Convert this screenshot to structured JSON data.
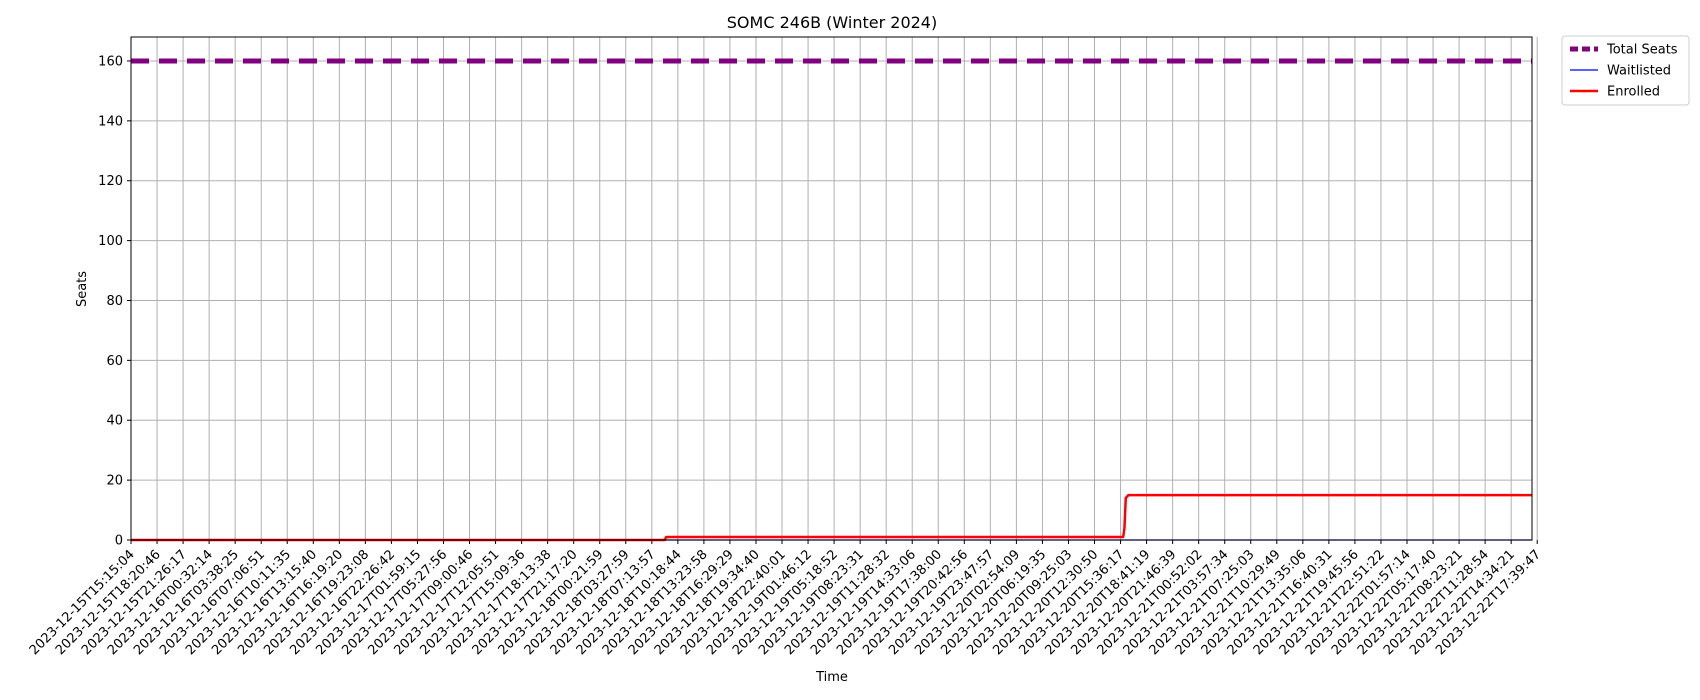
{
  "chart_data": {
    "type": "line",
    "title": "SOMC 246B (Winter 2024)",
    "xlabel": "Time",
    "ylabel": "Seats",
    "ylim": [
      0,
      168
    ],
    "yticks": [
      0,
      20,
      40,
      60,
      80,
      100,
      120,
      140,
      160
    ],
    "grid": true,
    "legend_position": "outside-top-right",
    "x_categories": [
      "2023-12-15T15:15:04",
      "2023-12-15T18:20:46",
      "2023-12-15T21:26:17",
      "2023-12-16T00:32:14",
      "2023-12-16T03:38:25",
      "2023-12-16T07:06:51",
      "2023-12-16T10:11:35",
      "2023-12-16T13:15:40",
      "2023-12-16T16:19:20",
      "2023-12-16T19:23:08",
      "2023-12-16T22:26:42",
      "2023-12-17T01:59:15",
      "2023-12-17T05:27:56",
      "2023-12-17T09:00:46",
      "2023-12-17T12:05:51",
      "2023-12-17T15:09:36",
      "2023-12-17T18:13:38",
      "2023-12-17T21:17:20",
      "2023-12-18T00:21:59",
      "2023-12-18T03:27:59",
      "2023-12-18T07:13:57",
      "2023-12-18T10:18:44",
      "2023-12-18T13:23:58",
      "2023-12-18T16:29:29",
      "2023-12-18T19:34:40",
      "2023-12-18T22:40:01",
      "2023-12-19T01:46:12",
      "2023-12-19T05:18:52",
      "2023-12-19T08:23:31",
      "2023-12-19T11:28:32",
      "2023-12-19T14:33:06",
      "2023-12-19T17:38:00",
      "2023-12-19T20:42:56",
      "2023-12-19T23:47:57",
      "2023-12-20T02:54:09",
      "2023-12-20T06:19:35",
      "2023-12-20T09:25:03",
      "2023-12-20T12:30:50",
      "2023-12-20T15:36:17",
      "2023-12-20T18:41:19",
      "2023-12-20T21:46:39",
      "2023-12-21T00:52:02",
      "2023-12-21T03:57:34",
      "2023-12-21T07:25:03",
      "2023-12-21T10:29:49",
      "2023-12-21T13:35:06",
      "2023-12-21T16:40:31",
      "2023-12-21T19:45:56",
      "2023-12-21T22:51:22",
      "2023-12-22T01:57:14",
      "2023-12-22T05:17:40",
      "2023-12-22T08:23:21",
      "2023-12-22T11:28:54",
      "2023-12-22T14:34:21",
      "2023-12-22T17:39:47"
    ],
    "x_range": [
      0,
      53.8
    ],
    "series": [
      {
        "name": "Total Seats",
        "color": "#800080",
        "style": "dashed",
        "points": [
          [
            0,
            160
          ],
          [
            53.8,
            160
          ]
        ]
      },
      {
        "name": "Waitlisted",
        "color": "#0000ff",
        "style": "solid",
        "points": [
          [
            0,
            0
          ],
          [
            53.8,
            0
          ]
        ]
      },
      {
        "name": "Enrolled",
        "color": "#ff0000",
        "style": "solid",
        "points": [
          [
            0,
            0
          ],
          [
            20.5,
            0
          ],
          [
            20.55,
            1
          ],
          [
            38.1,
            1
          ],
          [
            38.15,
            4
          ],
          [
            38.2,
            14
          ],
          [
            38.3,
            15
          ],
          [
            53.8,
            15
          ]
        ]
      }
    ]
  }
}
